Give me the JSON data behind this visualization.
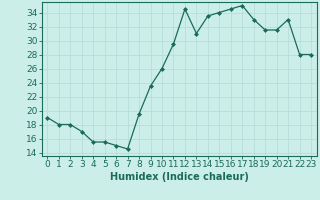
{
  "x": [
    0,
    1,
    2,
    3,
    4,
    5,
    6,
    7,
    8,
    9,
    10,
    11,
    12,
    13,
    14,
    15,
    16,
    17,
    18,
    19,
    20,
    21,
    22,
    23
  ],
  "y": [
    19,
    18,
    18,
    17,
    15.5,
    15.5,
    15,
    14.5,
    19.5,
    23.5,
    26,
    29.5,
    34.5,
    31,
    33.5,
    34,
    34.5,
    35,
    33,
    31.5,
    31.5,
    33,
    28,
    28
  ],
  "line_color": "#1a6b5a",
  "marker_color": "#1a6b5a",
  "bg_color": "#cceee8",
  "grid_color": "#b8ddd8",
  "xlabel": "Humidex (Indice chaleur)",
  "ylabel": "",
  "xlim": [
    -0.5,
    23.5
  ],
  "ylim": [
    13.5,
    35.5
  ],
  "yticks": [
    14,
    16,
    18,
    20,
    22,
    24,
    26,
    28,
    30,
    32,
    34
  ],
  "xticks": [
    0,
    1,
    2,
    3,
    4,
    5,
    6,
    7,
    8,
    9,
    10,
    11,
    12,
    13,
    14,
    15,
    16,
    17,
    18,
    19,
    20,
    21,
    22,
    23
  ],
  "label_fontsize": 7,
  "tick_fontsize": 6.5
}
